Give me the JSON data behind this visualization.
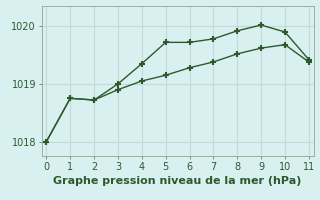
{
  "line1_x": [
    0,
    1,
    2,
    3,
    4,
    5,
    6,
    7,
    8,
    9,
    10,
    11
  ],
  "line1_y": [
    1018.0,
    1018.75,
    1018.72,
    1019.0,
    1019.35,
    1019.72,
    1019.72,
    1019.78,
    1019.92,
    1020.02,
    1019.9,
    1019.42
  ],
  "line2_x": [
    0,
    1,
    2,
    3,
    4,
    5,
    6,
    7,
    8,
    9,
    10,
    11
  ],
  "line2_y": [
    1018.0,
    1018.75,
    1018.72,
    1018.9,
    1019.05,
    1019.15,
    1019.28,
    1019.38,
    1019.52,
    1019.62,
    1019.68,
    1019.38
  ],
  "line_color": "#2d5a2d",
  "bg_color": "#d8f0f0",
  "grid_color": "#c8d8d8",
  "xlabel": "Graphe pression niveau de la mer (hPa)",
  "xlim": [
    -0.2,
    11.2
  ],
  "ylim": [
    1017.75,
    1020.35
  ],
  "yticks": [
    1018,
    1019,
    1020
  ],
  "xticks": [
    0,
    1,
    2,
    3,
    4,
    5,
    6,
    7,
    8,
    9,
    10,
    11
  ],
  "marker": "+",
  "markersize": 5,
  "linewidth": 1.0,
  "markeredgewidth": 1.5,
  "tick_fontsize": 7,
  "xlabel_fontsize": 8
}
